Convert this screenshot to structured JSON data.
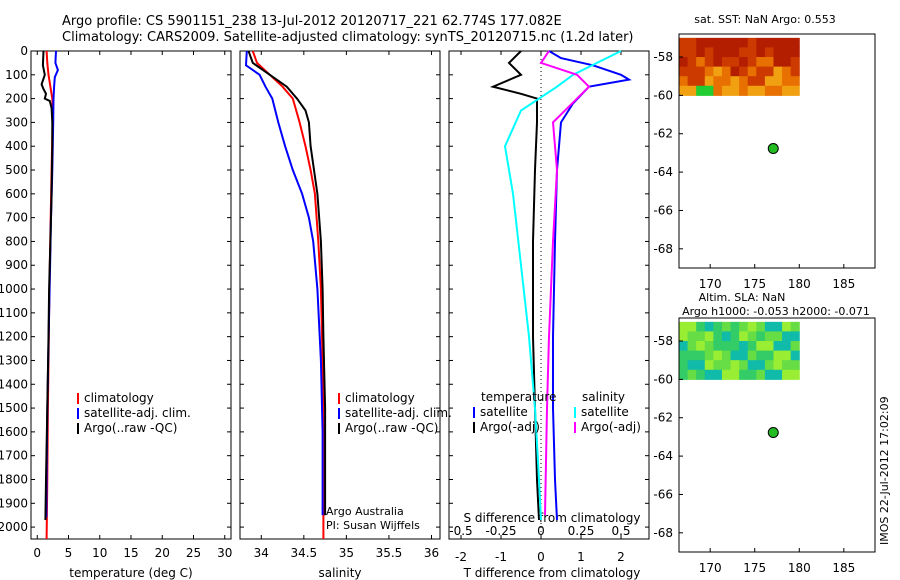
{
  "header": {
    "line1": "Argo profile: CS 5901151_238 13-Jul-2012 20120717_221 62.774S 177.082E",
    "line2": "Climatology: CARS2009. Satellite-adjusted climatology: synTS_20120715.nc (1.2d later)"
  },
  "footer": {
    "stamp": "IMOS 22-Jul-2012 17:02:09",
    "credit1": "Argo Australia",
    "credit2": "PI: Susan Wijffels"
  },
  "colors": {
    "climatology": "#ff0000",
    "satellite": "#0000ff",
    "argo": "#000000",
    "sat_salinity": "#00ffff",
    "argo_salinity": "#ff00ff",
    "marker": "#22bb22"
  },
  "chart_data": [
    {
      "id": "temp",
      "type": "line",
      "xlabel": "temperature (deg C)",
      "ylabel": "",
      "xlim": [
        -1,
        31
      ],
      "ylim": [
        2050,
        0
      ],
      "xticks": [
        0,
        5,
        10,
        15,
        20,
        25,
        30
      ],
      "yticks": [
        0,
        100,
        200,
        300,
        400,
        500,
        600,
        700,
        800,
        900,
        1000,
        1100,
        1200,
        1300,
        1400,
        1500,
        1600,
        1700,
        1800,
        1900,
        2000
      ],
      "legend": [
        "climatology",
        "satellite-adj. clim.",
        "Argo(..raw -QC)"
      ],
      "series": [
        {
          "name": "climatology",
          "color": "#ff0000",
          "x": [
            1.5,
            1.6,
            1.8,
            2.1,
            2.4,
            2.5,
            2.45,
            2.3,
            2.15,
            2.0,
            1.9,
            1.8,
            1.7,
            1.6,
            1.5
          ],
          "y": [
            0,
            50,
            100,
            150,
            200,
            250,
            300,
            500,
            700,
            900,
            1100,
            1300,
            1500,
            1800,
            2050
          ]
        },
        {
          "name": "satellite-adj. clim.",
          "color": "#0000ff",
          "x": [
            3.0,
            2.9,
            3.3,
            2.8,
            2.7,
            2.6,
            2.55,
            2.4,
            2.2,
            2.05,
            1.9,
            1.75,
            1.6,
            1.5,
            1.45
          ],
          "y": [
            0,
            50,
            80,
            110,
            150,
            200,
            300,
            500,
            700,
            900,
            1100,
            1300,
            1500,
            1800,
            1960
          ]
        },
        {
          "name": "Argo(..raw -QC)",
          "color": "#000000",
          "x": [
            1.0,
            0.9,
            1.2,
            0.7,
            1.0,
            1.4,
            1.2,
            2.0,
            2.3,
            2.4,
            2.4,
            2.3,
            2.1,
            1.9,
            1.8,
            1.6,
            1.4,
            1.3
          ],
          "y": [
            0,
            60,
            100,
            140,
            160,
            180,
            200,
            210,
            240,
            300,
            400,
            600,
            800,
            1000,
            1200,
            1500,
            1800,
            1970
          ]
        }
      ]
    },
    {
      "id": "sal",
      "type": "line",
      "xlabel": "salinity",
      "ylabel": "",
      "xlim": [
        33.75,
        36.1
      ],
      "ylim": [
        2050,
        0
      ],
      "xticks": [
        34,
        34.5,
        35,
        35.5,
        36
      ],
      "xticklabels": [
        "34",
        "34.5",
        "35",
        "35.5",
        "36"
      ],
      "yticks": [
        0,
        100,
        200,
        300,
        400,
        500,
        600,
        700,
        800,
        900,
        1000,
        1100,
        1200,
        1300,
        1400,
        1500,
        1600,
        1700,
        1800,
        1900,
        2000
      ],
      "legend": [
        "climatology",
        "satellite-adj. clim.",
        "Argo(..raw -QC)"
      ],
      "series": [
        {
          "name": "climatology",
          "color": "#ff0000",
          "x": [
            33.9,
            33.95,
            34.1,
            34.25,
            34.37,
            34.45,
            34.52,
            34.58,
            34.63,
            34.67,
            34.7,
            34.72,
            34.73,
            34.73
          ],
          "y": [
            0,
            50,
            100,
            150,
            200,
            300,
            400,
            500,
            600,
            800,
            1000,
            1300,
            1600,
            2050
          ]
        },
        {
          "name": "satellite-adj. clim.",
          "color": "#0000ff",
          "x": [
            33.83,
            33.82,
            33.98,
            34.05,
            34.13,
            34.2,
            34.28,
            34.37,
            34.48,
            34.56,
            34.61,
            34.66,
            34.7,
            34.72,
            34.72
          ],
          "y": [
            0,
            60,
            100,
            150,
            200,
            300,
            400,
            500,
            600,
            700,
            800,
            1000,
            1300,
            1600,
            1950
          ]
        },
        {
          "name": "Argo(..raw -QC)",
          "color": "#000000",
          "x": [
            33.85,
            33.9,
            34.1,
            34.3,
            34.42,
            34.52,
            34.56,
            34.58,
            34.62,
            34.66,
            34.7,
            34.72,
            34.73,
            34.75,
            34.75
          ],
          "y": [
            0,
            50,
            100,
            150,
            200,
            250,
            300,
            400,
            500,
            600,
            800,
            1000,
            1200,
            1500,
            1950
          ]
        }
      ],
      "annotations": [
        "Argo Australia",
        "PI: Susan Wijffels"
      ]
    },
    {
      "id": "diff",
      "type": "line",
      "xlabel": "T difference from climatology",
      "xlabel_top": "S difference from climatology",
      "xlim": [
        -2.3,
        2.7
      ],
      "ylim": [
        2050,
        0
      ],
      "xticks": [
        -2,
        -1,
        0,
        1,
        2
      ],
      "xticks_s": [
        -0.5,
        -0.25,
        0,
        0.25,
        0.5
      ],
      "xticklabels_s": [
        "-0.5",
        "-0.25",
        "0",
        "0.25",
        "0.5"
      ],
      "yticks": [
        0,
        100,
        200,
        300,
        400,
        500,
        600,
        700,
        800,
        900,
        1000,
        1100,
        1200,
        1300,
        1400,
        1500,
        1600,
        1700,
        1800,
        1900,
        2000
      ],
      "legend_headers": [
        "temperature",
        "salinity"
      ],
      "legend_items": [
        "satellite",
        "Argo(-adj)",
        "satellite",
        "Argo(-adj)"
      ],
      "series": [
        {
          "name": "satellite",
          "color": "#0000ff",
          "x": [
            0.2,
            0.5,
            1.3,
            2.0,
            2.2,
            1.2,
            0.8,
            0.5,
            0.4,
            0.35,
            0.3,
            0.3,
            0.35,
            0.4
          ],
          "y": [
            0,
            30,
            60,
            100,
            120,
            150,
            220,
            300,
            500,
            800,
            1200,
            1500,
            1800,
            1970
          ]
        },
        {
          "name": "Argo(-adj)",
          "color": "#000000",
          "x": [
            -0.5,
            -0.8,
            -0.5,
            -1.2,
            -0.5,
            -0.1,
            -0.1,
            -0.1,
            -0.15,
            -0.2,
            -0.2,
            -0.15,
            -0.1,
            -0.05
          ],
          "y": [
            0,
            50,
            100,
            150,
            180,
            200,
            220,
            300,
            500,
            800,
            1200,
            1500,
            1800,
            1970
          ]
        },
        {
          "name": "satellite",
          "color": "#00ffff",
          "x": [
            2.0,
            1.4,
            0.8,
            0.4,
            -0.5,
            -0.9,
            -0.7,
            -0.5,
            -0.3,
            -0.15,
            -0.05,
            0.0
          ],
          "y": [
            0,
            50,
            100,
            150,
            250,
            400,
            600,
            900,
            1200,
            1500,
            1800,
            1970
          ]
        },
        {
          "name": "Argo(-adj)",
          "color": "#ff00ff",
          "x": [
            0.2,
            0.0,
            0.9,
            1.2,
            0.9,
            0.3,
            0.4,
            0.3,
            0.2,
            0.15,
            0.1
          ],
          "y": [
            0,
            50,
            100,
            150,
            200,
            300,
            500,
            800,
            1200,
            1500,
            1950
          ]
        }
      ]
    },
    {
      "id": "sst",
      "type": "heatmap",
      "title": "sat. SST: NaN Argo: 0.553",
      "xlim": [
        166.5,
        188.5
      ],
      "ylim": [
        -69,
        -56.8
      ],
      "xticks": [
        170,
        175,
        180,
        185
      ],
      "yticks": [
        -58,
        -60,
        -62,
        -64,
        -66,
        -68
      ],
      "marker": {
        "x": 177.08,
        "y": -62.77
      }
    },
    {
      "id": "sla",
      "type": "heatmap",
      "title": "Altim. SLA: NaN",
      "subtitle": "Argo h1000: -0.053 h2000: -0.071",
      "xlim": [
        166.5,
        188.5
      ],
      "ylim": [
        -69,
        -56.8
      ],
      "xticks": [
        170,
        175,
        180,
        185
      ],
      "yticks": [
        -58,
        -60,
        -62,
        -64,
        -66,
        -68
      ],
      "marker": {
        "x": 177.08,
        "y": -62.77
      }
    }
  ]
}
